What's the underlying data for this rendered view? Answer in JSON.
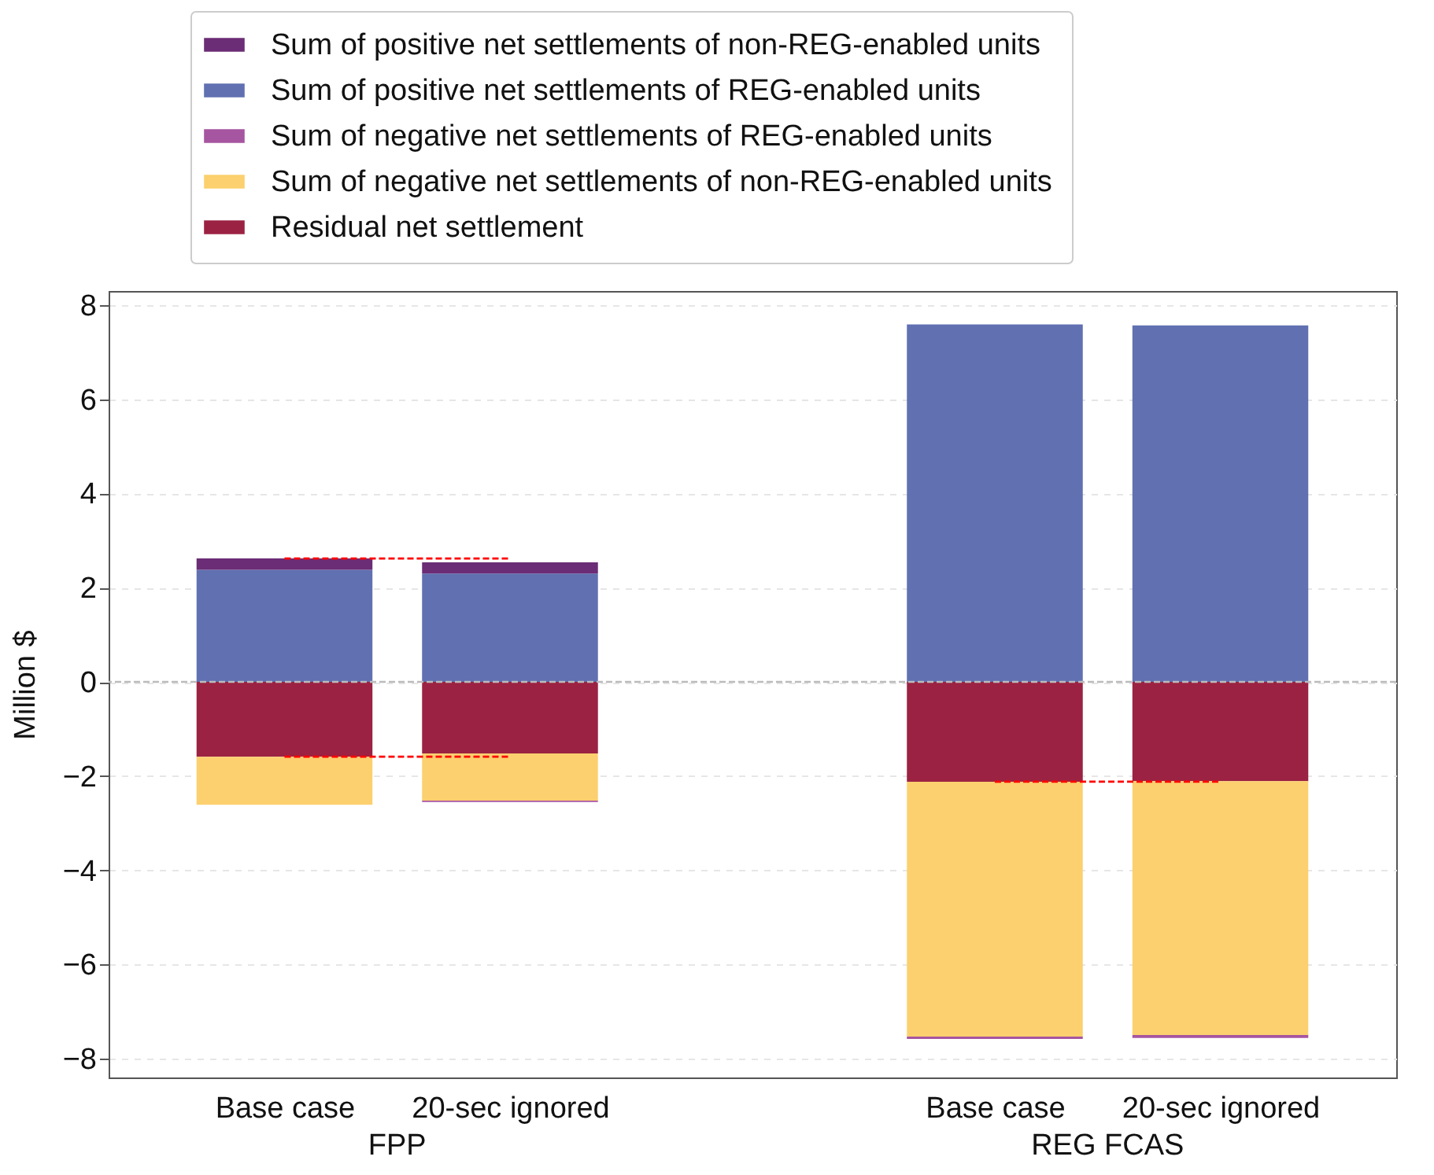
{
  "chart_data": {
    "type": "bar",
    "ylabel": "Million $",
    "stacked": true,
    "categories": [
      "Base case",
      "20-sec ignored",
      "Base case",
      "20-sec ignored"
    ],
    "series": [
      {
        "name": "Residual net settlement",
        "color": "#9b2242",
        "values": [
          -1.59,
          -1.52,
          -2.12,
          -2.11
        ]
      },
      {
        "name": "Sum of negative net settlements of non-REG-enabled units",
        "color": "#fcd06f",
        "values": [
          -1.02,
          -1.0,
          -5.41,
          -5.39
        ]
      },
      {
        "name": "Sum of negative net settlements of REG-enabled units",
        "color": "#a655a0",
        "values": [
          0,
          -0.03,
          -0.05,
          -0.06
        ]
      },
      {
        "name": "Sum of positive net settlements of REG-enabled units",
        "color": "#6070b1",
        "values": [
          2.38,
          2.3,
          7.59,
          7.57
        ]
      },
      {
        "name": "Sum of positive net settlements of non-REG-enabled units",
        "color": "#6b2d75",
        "values": [
          0.24,
          0.24,
          0,
          0
        ]
      },
      {
        "type": "line",
        "color": "#ff0000",
        "line_style": "dashed",
        "marker": "none",
        "values": [
          2.62,
          2.62,
          null,
          null
        ]
      },
      {
        "type": "line",
        "color": "#ff0000",
        "line_style": "dashed",
        "marker": "none",
        "values": [
          -1.59,
          -1.59,
          null,
          null
        ]
      },
      {
        "type": "line",
        "color": "#ff0000",
        "line_style": "dashed",
        "marker": "none",
        "values": [
          null,
          null,
          -2.12,
          -2.12
        ]
      }
    ],
    "ylim": [
      -8.4,
      8.3
    ],
    "yticks": [
      -8,
      -6,
      -4,
      -2,
      0,
      2,
      4,
      6,
      8
    ],
    "grid": "y",
    "legend": "top",
    "ref_lines": [
      {
        "axis": "y",
        "value": 0,
        "color": "#bbbbbb",
        "line_style": "dashed"
      }
    ],
    "annotations": [
      "FPP",
      "REG FCAS"
    ]
  }
}
